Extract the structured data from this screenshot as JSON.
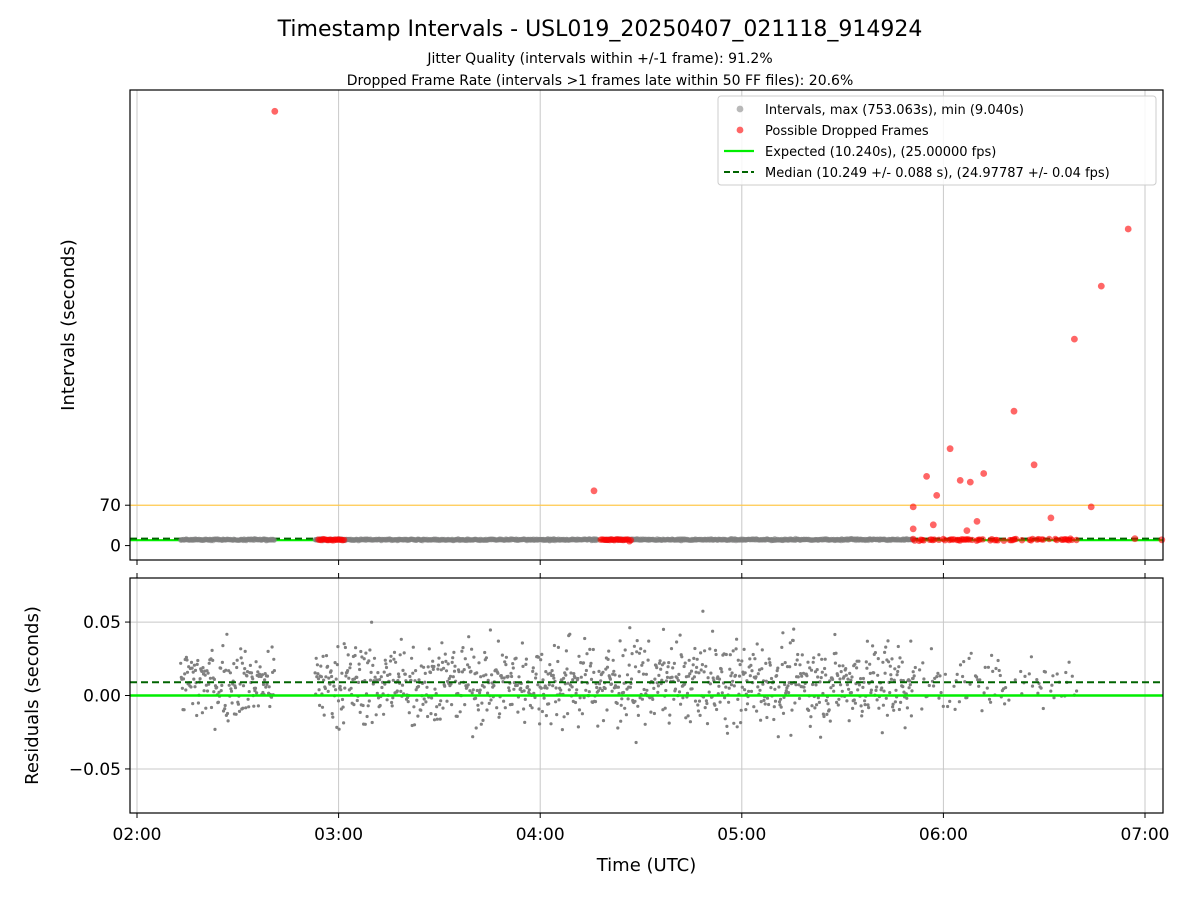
{
  "title": "Timestamp Intervals - USL019_20250407_021118_914924",
  "subtitle_1": "Jitter Quality (intervals within +/-1 frame): 91.2%",
  "subtitle_2": "Dropped Frame Rate (intervals >1 frames late within 50 FF files): 20.6%",
  "colors": {
    "intervals": "#808080",
    "dropped": "#ff0000",
    "expected": "#00ee00",
    "median": "#006400",
    "threshold": "#ffc94d",
    "grid": "#c8c8c8"
  },
  "chart_data": [
    {
      "type": "scatter",
      "panel": "top",
      "ylabel": "Intervals (seconds)",
      "xlabel": "",
      "xlim": [
        "02:00",
        "07:00"
      ],
      "ylim": [
        -25,
        790
      ],
      "yticks": [
        0,
        70
      ],
      "xticks": [
        "02:00",
        "03:00",
        "04:00",
        "05:00",
        "06:00",
        "07:00"
      ],
      "grid": "x",
      "legend_position": "upper right",
      "legend": [
        "Intervals, max (753.063s), min (9.040s)",
        "Possible Dropped Frames",
        "Expected (10.240s), (25.00000 fps)",
        "Median (10.249 +/- 0.088 s), (24.97787 +/- 0.04 fps)"
      ],
      "expected": 10.24,
      "median": 10.249,
      "threshold_lines": [
        70,
        10.24
      ],
      "interval_segments": [
        [
          "02:13",
          "02:41"
        ],
        [
          "02:53",
          "04:17"
        ],
        [
          "04:19",
          "05:51"
        ]
      ],
      "interval_value": 10.25,
      "dropped_points": [
        {
          "time": "02:41",
          "value": 753
        },
        {
          "time": "04:16",
          "value": 95
        },
        {
          "time": "05:51",
          "value": 67
        },
        {
          "time": "05:51",
          "value": 29
        },
        {
          "time": "05:55",
          "value": 120
        },
        {
          "time": "05:57",
          "value": 36
        },
        {
          "time": "05:58",
          "value": 87
        },
        {
          "time": "06:02",
          "value": 168
        },
        {
          "time": "06:05",
          "value": 113
        },
        {
          "time": "06:07",
          "value": 26
        },
        {
          "time": "06:08",
          "value": 110
        },
        {
          "time": "06:10",
          "value": 42
        },
        {
          "time": "06:12",
          "value": 125
        },
        {
          "time": "06:21",
          "value": 233
        },
        {
          "time": "06:27",
          "value": 140
        },
        {
          "time": "06:32",
          "value": 48
        },
        {
          "time": "06:39",
          "value": 358
        },
        {
          "time": "06:44",
          "value": 67
        },
        {
          "time": "06:47",
          "value": 450
        },
        {
          "time": "06:55",
          "value": 549
        },
        {
          "time": "06:57",
          "value": 12
        },
        {
          "time": "07:05",
          "value": 10
        }
      ],
      "dropped_clusters": [
        [
          "02:54",
          "03:02"
        ],
        [
          "04:18",
          "04:27"
        ],
        [
          "05:51",
          "06:40"
        ]
      ],
      "dropped_cluster_value": 10.25
    },
    {
      "type": "scatter",
      "panel": "bottom",
      "ylabel": "Residuals (seconds)",
      "xlabel": "Time (UTC)",
      "xlim": [
        "02:00",
        "07:00"
      ],
      "ylim": [
        -0.08,
        0.08
      ],
      "yticks": [
        -0.05,
        0.0,
        0.05
      ],
      "ytick_labels": [
        "−0.05",
        "0.00",
        "0.05"
      ],
      "xticks": [
        "02:00",
        "03:00",
        "04:00",
        "05:00",
        "06:00",
        "07:00"
      ],
      "grid": "both",
      "expected_residual": 0.0,
      "median_residual": 0.009,
      "residual_segments": [
        {
          "start": "02:13",
          "end": "02:41",
          "spread": 0.022
        },
        {
          "start": "02:53",
          "end": "05:51",
          "spread": 0.025
        },
        {
          "start": "05:51",
          "end": "06:40",
          "spread": 0.017
        }
      ],
      "residual_range": [
        -0.063,
        0.068
      ]
    }
  ]
}
